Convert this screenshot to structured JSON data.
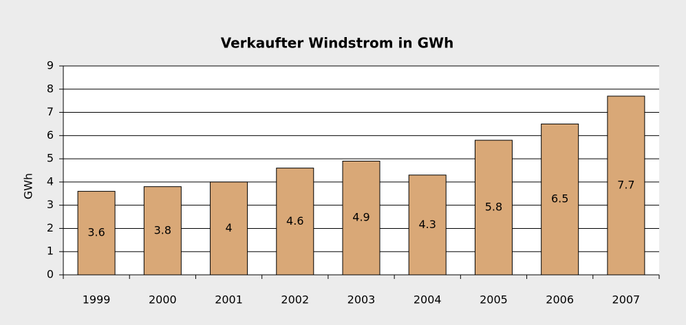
{
  "chart_data": {
    "type": "bar",
    "title": "Verkaufter Windstrom in GWh",
    "y_label": "GWh",
    "categories": [
      "1999",
      "2000",
      "2001",
      "2002",
      "2003",
      "2004",
      "2005",
      "2006",
      "2007"
    ],
    "values": [
      3.6,
      3.8,
      4,
      4.6,
      4.9,
      4.3,
      5.8,
      6.5,
      7.7
    ],
    "color": "#d9a877",
    "ylim": [
      0,
      9
    ],
    "yticks": [
      0,
      1,
      2,
      3,
      4,
      5,
      6,
      7,
      8,
      9
    ],
    "grid": true
  }
}
